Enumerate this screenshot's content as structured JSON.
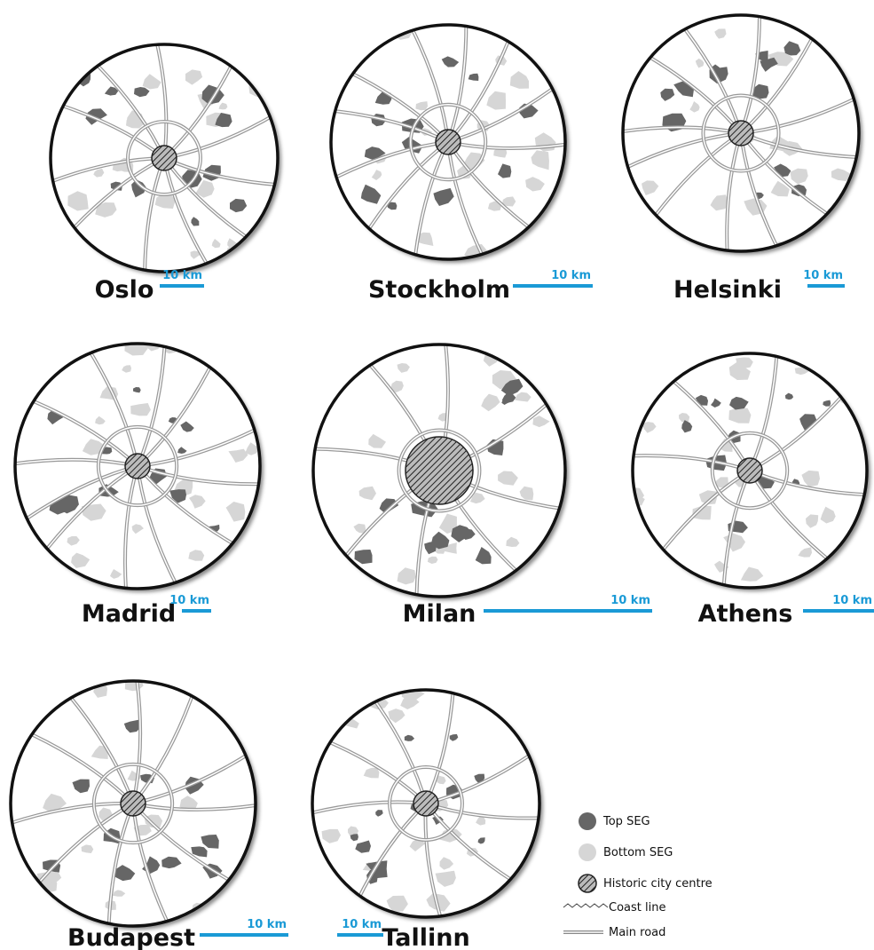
{
  "cities": [
    {
      "name": "Oslo",
      "scale": "10 km"
    },
    {
      "name": "Stockholm",
      "scale": "10 km"
    },
    {
      "name": "Helsinki",
      "scale": "10 km"
    },
    {
      "name": "Madrid",
      "scale": "10 km"
    },
    {
      "name": "Milan",
      "scale": "10 km"
    },
    {
      "name": "Athens",
      "scale": "10 km"
    },
    {
      "name": "Budapest",
      "scale": "10 km"
    },
    {
      "name": "Tallinn",
      "scale": "10 km"
    }
  ],
  "legend": [
    {
      "label": "Top SEG"
    },
    {
      "label": "Bottom SEG"
    },
    {
      "label": "Historic city centre"
    },
    {
      "label": "Coast line"
    },
    {
      "label": "Main road"
    }
  ]
}
